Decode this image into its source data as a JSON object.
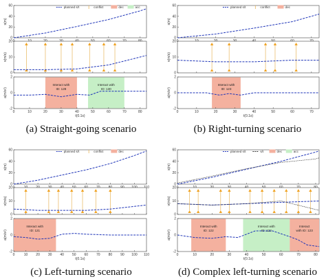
{
  "captions": [
    "(a)  Straight-going scenario",
    "(b)  Right-turning scenario",
    "(c)  Left-turning scenario",
    "(d)  Complex left-turning scenario"
  ],
  "colors": {
    "line": "#1f35b8",
    "conflict": "#e8b55a",
    "stop_marker": "#f0a323",
    "dec_region": "#f4b19f",
    "acc_region": "#c6efc6",
    "frame": "#444444"
  },
  "chart_data": [
    {
      "type": "line",
      "scenario": "Straight-going scenario",
      "legend": [
        "planned s/t",
        "conflict",
        "dec",
        "acc"
      ],
      "s_t": {
        "x": [
          0,
          20,
          40,
          60,
          80,
          84
        ],
        "y": [
          0,
          9,
          21,
          34,
          50,
          54
        ],
        "xlim": [
          0,
          84
        ],
        "ylim": [
          0,
          60
        ],
        "xticks": [
          0,
          10,
          20,
          30,
          40,
          50,
          60,
          70,
          80
        ],
        "yticks": [
          0,
          20,
          40,
          60
        ],
        "ylabel": "s(m)"
      },
      "v_t": {
        "x": [
          0,
          20,
          40,
          60,
          84
        ],
        "y": [
          2,
          2,
          2.5,
          5,
          11
        ],
        "xlim": [
          0,
          84
        ],
        "ylim": [
          0,
          20
        ],
        "yticks": [
          0,
          10,
          20
        ],
        "ylabel": "v(m/s)",
        "conflict_times": [
          8,
          20,
          30,
          37,
          48,
          57,
          64
        ]
      },
      "a_t": {
        "x": [
          0,
          10,
          20,
          30,
          40,
          48,
          55,
          62,
          70,
          84
        ],
        "y": [
          -0.3,
          -0.3,
          -0.2,
          -0.5,
          -0.2,
          -0.3,
          0.2,
          0.2,
          0.2,
          0.2
        ],
        "xlim": [
          0,
          84
        ],
        "ylim": [
          -2,
          2
        ],
        "yticks": [
          -2,
          0,
          2
        ],
        "ylabel": "a(m/s²)",
        "xlabel": "t(0.1s)",
        "regions": [
          {
            "type": "dec",
            "x": [
              20,
              40
            ],
            "label": [
              "Interact with",
              "ID: 128"
            ]
          },
          {
            "type": "acc",
            "x": [
              47,
              70
            ],
            "label": [
              "Interact with",
              "ID: 130"
            ]
          }
        ]
      }
    },
    {
      "type": "line",
      "scenario": "Right-turning scenario",
      "legend": [
        "planned s/t",
        "conflict",
        "dec"
      ],
      "s_t": {
        "x": [
          0,
          20,
          40,
          60,
          74
        ],
        "y": [
          0,
          7,
          18,
          30,
          44
        ],
        "xlim": [
          0,
          74
        ],
        "ylim": [
          0,
          60
        ],
        "xticks": [
          0,
          10,
          20,
          30,
          40,
          50,
          60,
          70
        ],
        "yticks": [
          0,
          20,
          40,
          60
        ],
        "ylabel": "s(m)"
      },
      "v_t": {
        "x": [
          0,
          20,
          40,
          60,
          74
        ],
        "y": [
          8,
          7,
          7,
          8,
          8
        ],
        "xlim": [
          0,
          74
        ],
        "ylim": [
          0,
          20
        ],
        "yticks": [
          0,
          10,
          20
        ],
        "ylabel": "v(m/s)",
        "conflict_times": [
          18,
          27,
          46,
          51,
          62
        ]
      },
      "a_t": {
        "x": [
          0,
          15,
          22,
          27,
          33,
          40,
          74
        ],
        "y": [
          0,
          0,
          -0.3,
          -0.1,
          -0.3,
          0,
          0
        ],
        "xlim": [
          0,
          74
        ],
        "ylim": [
          -2,
          2
        ],
        "yticks": [
          -2,
          0,
          2
        ],
        "ylabel": "a(m/s²)",
        "xlabel": "t(0.1s)",
        "regions": [
          {
            "type": "dec",
            "x": [
              18,
              33
            ],
            "label": [
              "Interact with",
              "ID: 123"
            ]
          }
        ]
      }
    },
    {
      "type": "line",
      "scenario": "Left-turning scenario",
      "legend": [
        "planned s/t",
        "conflict",
        "dec"
      ],
      "s_t": {
        "x": [
          0,
          20,
          40,
          60,
          80,
          100,
          110
        ],
        "y": [
          0,
          7,
          16,
          25,
          36,
          50,
          58
        ],
        "xlim": [
          0,
          110
        ],
        "ylim": [
          0,
          60
        ],
        "xticks": [
          0,
          10,
          20,
          30,
          40,
          50,
          60,
          70,
          80,
          90,
          100,
          110
        ],
        "yticks": [
          0,
          20,
          40,
          60
        ],
        "ylabel": "s(m)"
      },
      "v_t": {
        "x": [
          0,
          20,
          40,
          60,
          80,
          100,
          110
        ],
        "y": [
          4,
          3,
          3,
          3,
          4,
          6,
          7
        ],
        "xlim": [
          0,
          110
        ],
        "ylim": [
          0,
          20
        ],
        "yticks": [
          0,
          10,
          20
        ],
        "ylabel": "v(m/s)",
        "conflict_times": [
          10,
          29,
          37,
          48,
          57,
          68,
          80
        ]
      },
      "a_t": {
        "x": [
          0,
          10,
          20,
          30,
          40,
          50,
          60,
          80,
          100,
          110
        ],
        "y": [
          -0.2,
          -0.3,
          -0.5,
          -0.4,
          0.1,
          0.2,
          0.1,
          0,
          0,
          0
        ],
        "xlim": [
          0,
          110
        ],
        "ylim": [
          -2,
          2
        ],
        "yticks": [
          -2,
          0,
          2
        ],
        "ylabel": "a(m/s²)",
        "xlabel": "t(0.1s)",
        "regions": [
          {
            "type": "dec",
            "x": [
              0,
              35
            ],
            "label": [
              "Interact with",
              "ID: 121"
            ]
          }
        ]
      }
    },
    {
      "type": "line",
      "scenario": "Complex left-turning scenario",
      "legend": [
        "planned s/t",
        "s/t",
        "dec",
        "acc"
      ],
      "s_t": {
        "x": [
          0,
          20,
          40,
          60,
          80,
          82
        ],
        "y": [
          0,
          12,
          26,
          40,
          56,
          58
        ],
        "y2": [
          2,
          14,
          27,
          38,
          44,
          46
        ],
        "xlim": [
          0,
          82
        ],
        "ylim": [
          0,
          60
        ],
        "xticks": [
          0,
          10,
          20,
          30,
          40,
          50,
          60,
          70,
          80
        ],
        "yticks": [
          0,
          20,
          40,
          60
        ],
        "ylabel": "s(m)"
      },
      "v_t": {
        "x": [
          0,
          20,
          40,
          60,
          82
        ],
        "y": [
          8,
          7,
          8,
          9,
          10
        ],
        "y2": [
          8,
          7,
          8,
          10,
          3
        ],
        "xlim": [
          0,
          82
        ],
        "ylim": [
          0,
          20
        ],
        "yticks": [
          0,
          10,
          20
        ],
        "ylabel": "v(m/s)",
        "conflict_times": [
          7,
          12,
          25,
          30,
          42,
          49,
          56,
          63,
          70,
          77
        ]
      },
      "a_t": {
        "x": [
          0,
          10,
          20,
          28,
          35,
          45,
          55,
          65,
          70,
          75,
          82
        ],
        "y": [
          0,
          -0.3,
          -0.4,
          -0.2,
          -0.3,
          0.5,
          0.5,
          -0.2,
          -0.6,
          -1.2,
          -1.4
        ],
        "xlim": [
          0,
          82
        ],
        "ylim": [
          -2,
          2
        ],
        "yticks": [
          -2,
          0,
          2
        ],
        "ylabel": "a(m/s²)",
        "xlabel": "t(0.1s)",
        "regions": [
          {
            "type": "dec",
            "x": [
              8,
              28
            ],
            "label": [
              "Interact with",
              "ID: 122"
            ]
          },
          {
            "type": "acc",
            "x": [
              38,
              65
            ],
            "label": [
              "Interact with",
              "ID: 122"
            ]
          },
          {
            "type": "dec",
            "x": [
              65,
              82
            ],
            "label": [
              "Interact",
              "with ID: 123"
            ]
          }
        ]
      }
    }
  ]
}
